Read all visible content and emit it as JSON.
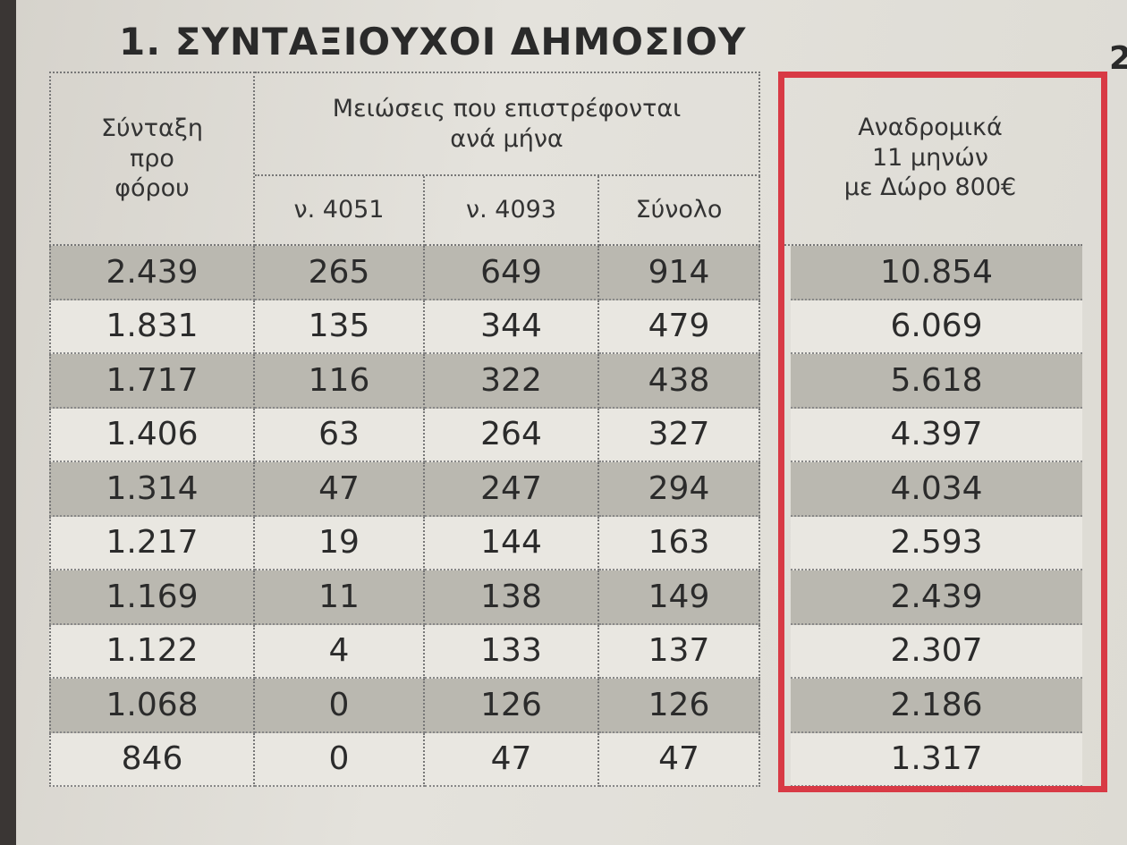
{
  "title": "1. ΣΥΝΤΑΞΙΟΥΧΟΙ ΔΗΜΟΣΙΟΥ",
  "next_section": "2.",
  "table": {
    "headers": {
      "pension": "Σύνταξη\nπρο\nφόρου",
      "reductions": "Μειώσεις που επιστρέφονται\nανά μήνα",
      "law_4051": "ν. 4051",
      "law_4093": "ν. 4093",
      "total": "Σύνολο",
      "retroactive": "Αναδρομικά\n11 μηνών\nμε Δώρο 800€"
    },
    "rows": [
      [
        "2.439",
        "265",
        "649",
        "914",
        "10.854"
      ],
      [
        "1.831",
        "135",
        "344",
        "479",
        "6.069"
      ],
      [
        "1.717",
        "116",
        "322",
        "438",
        "5.618"
      ],
      [
        "1.406",
        "63",
        "264",
        "327",
        "4.397"
      ],
      [
        "1.314",
        "47",
        "247",
        "294",
        "4.034"
      ],
      [
        "1.217",
        "19",
        "144",
        "163",
        "2.593"
      ],
      [
        "1.169",
        "11",
        "138",
        "149",
        "2.439"
      ],
      [
        "1.122",
        "4",
        "133",
        "137",
        "2.307"
      ],
      [
        "1.068",
        "0",
        "126",
        "126",
        "2.186"
      ],
      [
        "846",
        "0",
        "47",
        "47",
        "1.317"
      ]
    ]
  }
}
